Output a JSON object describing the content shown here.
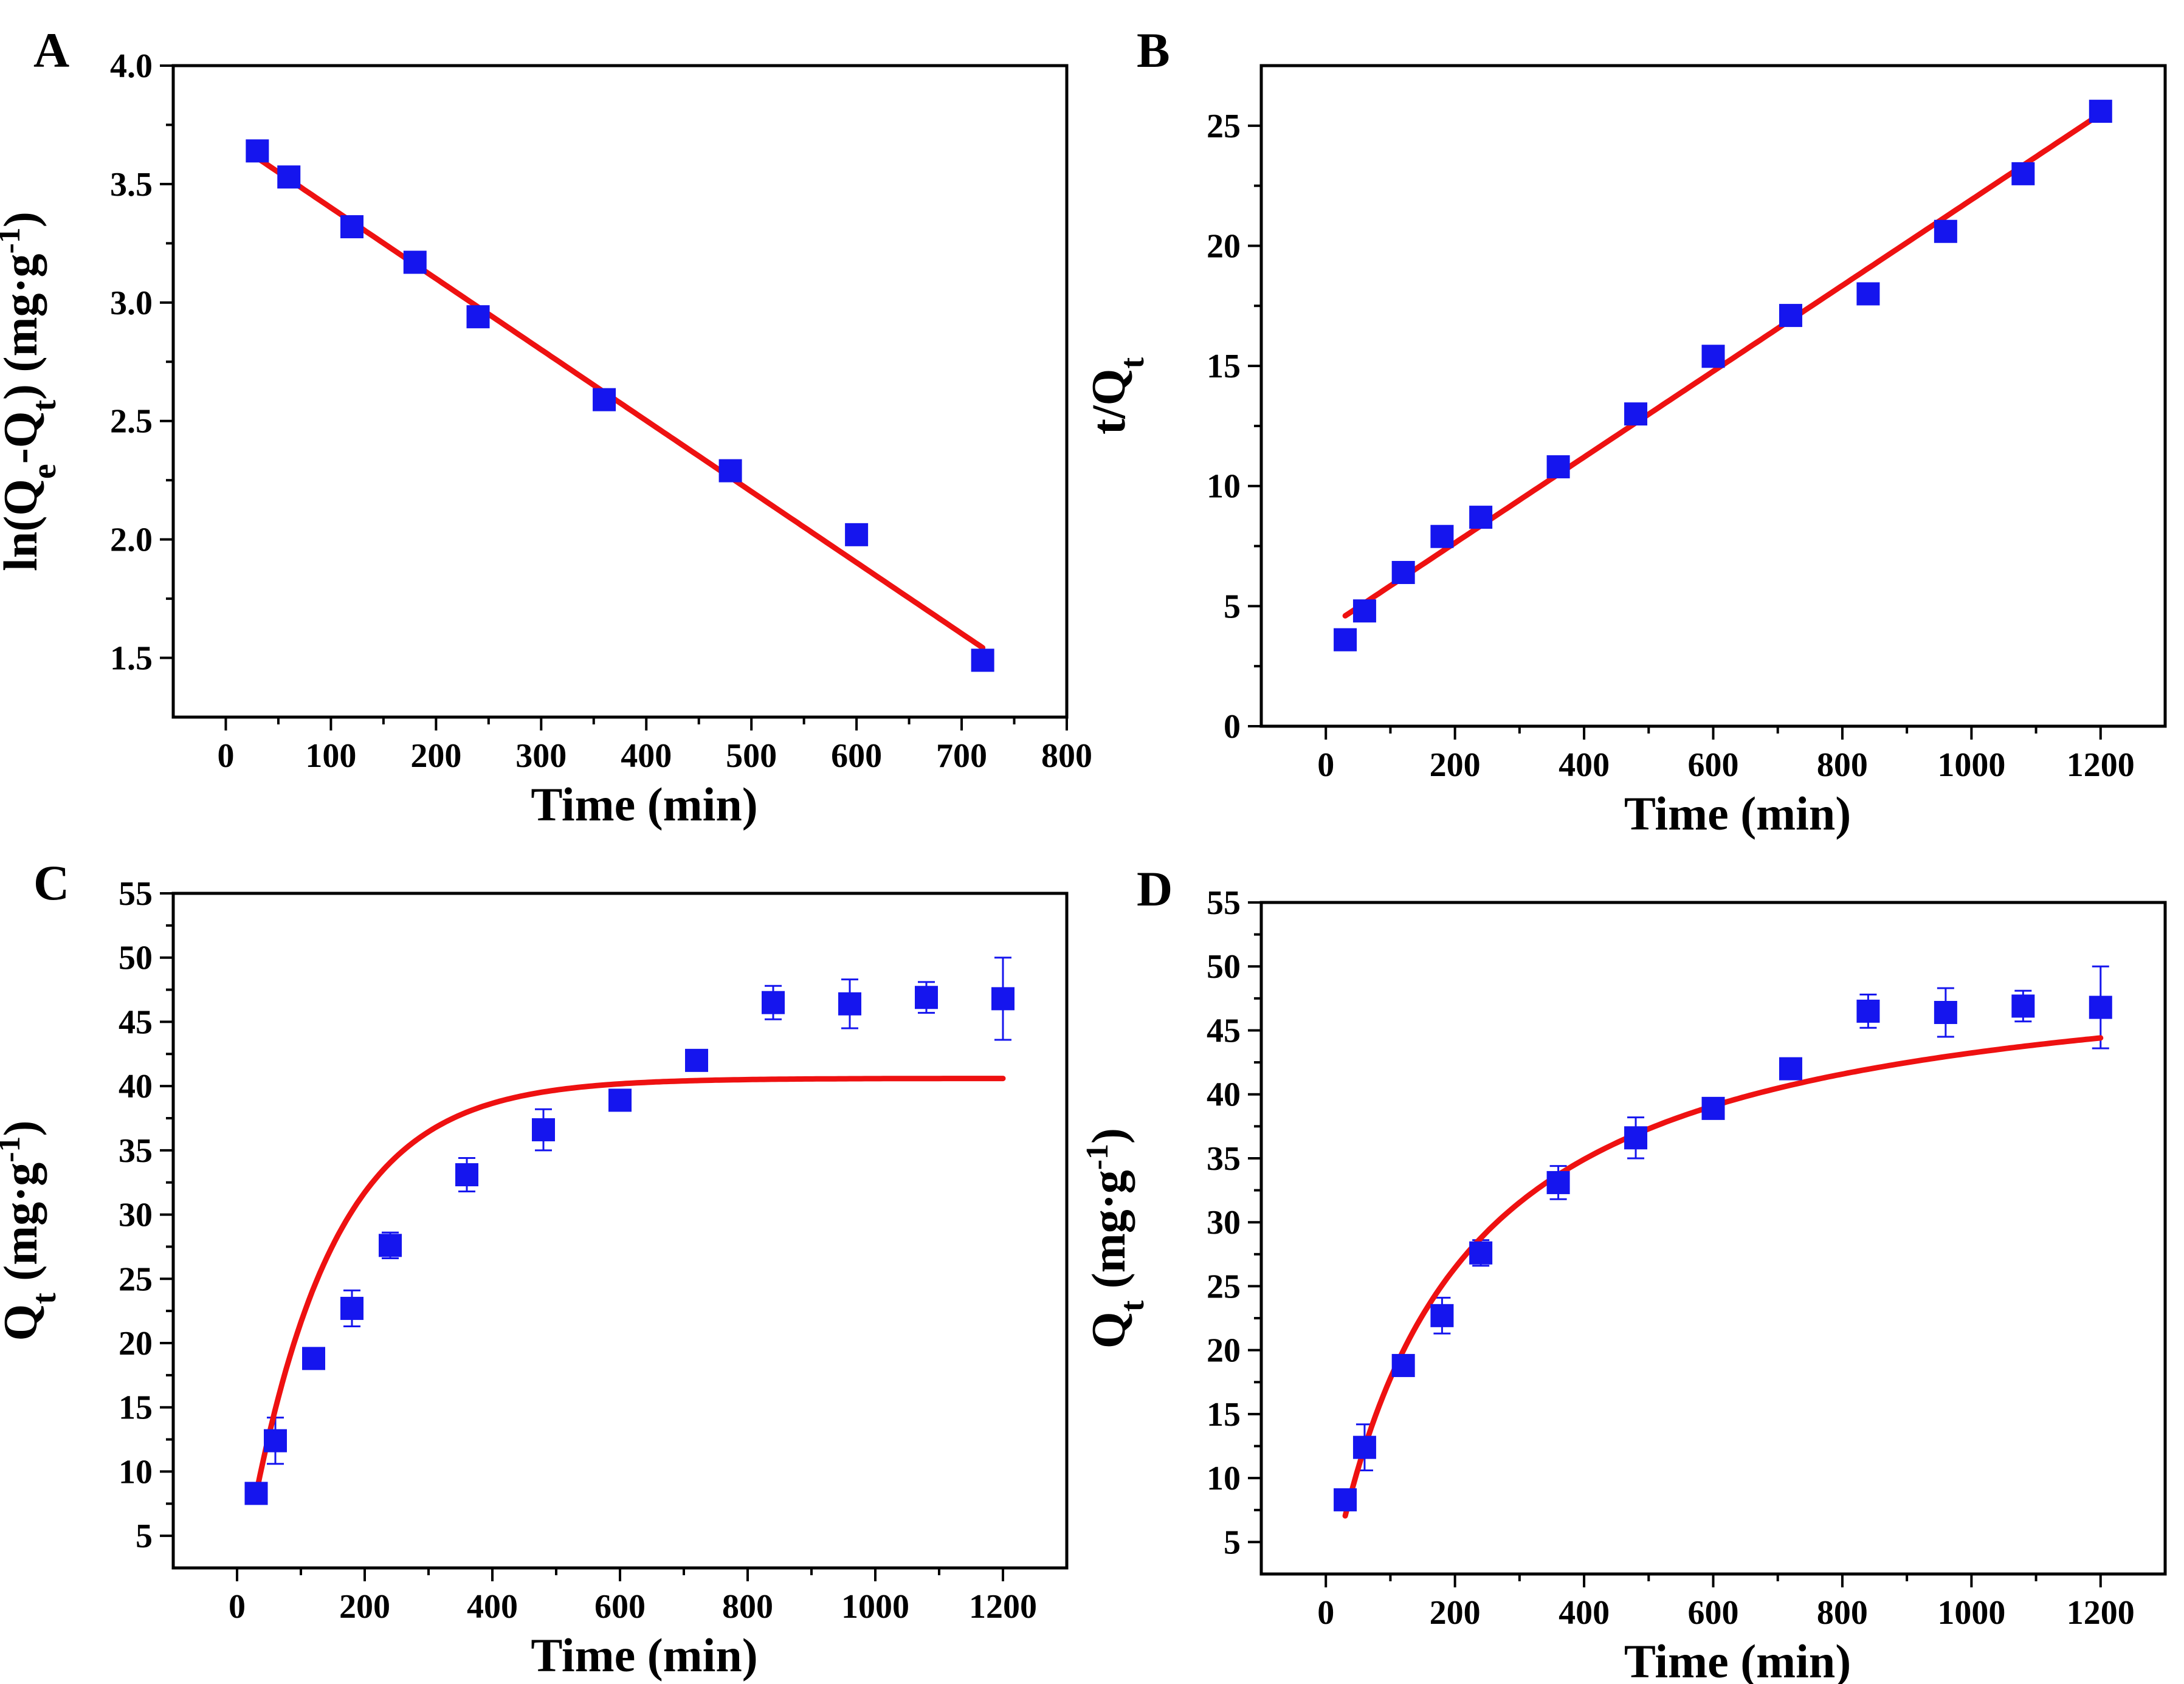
{
  "figure": {
    "colors": {
      "marker": "#1515ee",
      "fit": "#ee1111",
      "axis": "#000000"
    },
    "marker_shape": "square"
  },
  "chart_data": [
    {
      "panel": "A",
      "type": "scatter",
      "x_title": "Time (min)",
      "y_title": {
        "pre": "ln(Q",
        "sub1": "e",
        "mid": "-Q",
        "sub2": "t",
        "post": ") (mg·g",
        "sup": "-1",
        "end": ")"
      },
      "xlim": [
        -50,
        800
      ],
      "ylim": [
        1.25,
        4.0
      ],
      "xticks": [
        0,
        100,
        200,
        300,
        400,
        500,
        600,
        700,
        800
      ],
      "yticks": [
        1.5,
        2.0,
        2.5,
        3.0,
        3.5,
        4.0
      ],
      "ytick_decimals": 1,
      "points": [
        {
          "x": 30,
          "y": 3.64
        },
        {
          "x": 60,
          "y": 3.53
        },
        {
          "x": 120,
          "y": 3.32
        },
        {
          "x": 180,
          "y": 3.17
        },
        {
          "x": 240,
          "y": 2.94
        },
        {
          "x": 360,
          "y": 2.59
        },
        {
          "x": 480,
          "y": 2.29
        },
        {
          "x": 600,
          "y": 2.02
        },
        {
          "x": 720,
          "y": 1.49
        }
      ],
      "fit": {
        "model": "linear",
        "x_range": [
          30,
          720
        ],
        "slope": -0.002996,
        "intercept": 3.7
      }
    },
    {
      "panel": "B",
      "type": "scatter",
      "x_title": "Time (min)",
      "y_title": {
        "pre": "t/Q",
        "sub1": "t"
      },
      "xlim": [
        -100,
        1300
      ],
      "ylim": [
        0,
        27.5
      ],
      "xticks": [
        0,
        200,
        400,
        600,
        800,
        1000,
        1200
      ],
      "yticks": [
        0,
        5,
        10,
        15,
        20,
        25
      ],
      "ytick_decimals": 0,
      "points": [
        {
          "x": 30,
          "y": 3.6
        },
        {
          "x": 60,
          "y": 4.8
        },
        {
          "x": 120,
          "y": 6.4
        },
        {
          "x": 180,
          "y": 7.9
        },
        {
          "x": 240,
          "y": 8.7
        },
        {
          "x": 360,
          "y": 10.8
        },
        {
          "x": 480,
          "y": 13.0
        },
        {
          "x": 600,
          "y": 15.4
        },
        {
          "x": 720,
          "y": 17.1
        },
        {
          "x": 840,
          "y": 18.0
        },
        {
          "x": 960,
          "y": 20.6
        },
        {
          "x": 1080,
          "y": 23.0
        },
        {
          "x": 1200,
          "y": 25.6
        }
      ],
      "fit": {
        "model": "linear",
        "x_range": [
          30,
          1200
        ],
        "slope": 0.01786,
        "intercept": 4.06
      }
    },
    {
      "panel": "C",
      "type": "scatter",
      "x_title": "Time (min)",
      "y_title": {
        "pre": "Q",
        "sub1": "t",
        "post": " (mg·g",
        "sup": "-1",
        "end": ")"
      },
      "xlim": [
        -100,
        1300
      ],
      "ylim": [
        2.5,
        55
      ],
      "xticks": [
        0,
        200,
        400,
        600,
        800,
        1000,
        1200
      ],
      "yticks": [
        5,
        10,
        15,
        20,
        25,
        30,
        35,
        40,
        45,
        50,
        55
      ],
      "ytick_decimals": 0,
      "points": [
        {
          "x": 30,
          "y": 8.3,
          "err": 0.3
        },
        {
          "x": 60,
          "y": 12.4,
          "err": 1.8
        },
        {
          "x": 120,
          "y": 18.8,
          "err": 0.4
        },
        {
          "x": 180,
          "y": 22.7,
          "err": 1.4
        },
        {
          "x": 240,
          "y": 27.6,
          "err": 1.0
        },
        {
          "x": 360,
          "y": 33.1,
          "err": 1.3
        },
        {
          "x": 480,
          "y": 36.6,
          "err": 1.6
        },
        {
          "x": 600,
          "y": 38.9,
          "err": 0.5
        },
        {
          "x": 720,
          "y": 42.0,
          "err": 0.5
        },
        {
          "x": 840,
          "y": 46.5,
          "err": 1.3
        },
        {
          "x": 960,
          "y": 46.4,
          "err": 1.9
        },
        {
          "x": 1080,
          "y": 46.9,
          "err": 1.2
        },
        {
          "x": 1200,
          "y": 46.8,
          "err": 3.2
        }
      ],
      "fit": {
        "model": "pseudo-first-order",
        "x_range": [
          30,
          1200
        ],
        "qe": 40.6,
        "k": 0.0076
      }
    },
    {
      "panel": "D",
      "type": "scatter",
      "x_title": "Time (min)",
      "y_title": {
        "pre": "Q",
        "sub1": "t",
        "post": " (mg·g",
        "sup": "-1",
        "end": ")"
      },
      "xlim": [
        -100,
        1300
      ],
      "ylim": [
        2.5,
        55
      ],
      "xticks": [
        0,
        200,
        400,
        600,
        800,
        1000,
        1200
      ],
      "yticks": [
        5,
        10,
        15,
        20,
        25,
        30,
        35,
        40,
        45,
        50,
        55
      ],
      "ytick_decimals": 0,
      "points": [
        {
          "x": 30,
          "y": 8.3,
          "err": 0.3
        },
        {
          "x": 60,
          "y": 12.4,
          "err": 1.8
        },
        {
          "x": 120,
          "y": 18.8,
          "err": 0.4
        },
        {
          "x": 180,
          "y": 22.7,
          "err": 1.4
        },
        {
          "x": 240,
          "y": 27.6,
          "err": 1.0
        },
        {
          "x": 360,
          "y": 33.1,
          "err": 1.3
        },
        {
          "x": 480,
          "y": 36.6,
          "err": 1.6
        },
        {
          "x": 600,
          "y": 38.9,
          "err": 0.5
        },
        {
          "x": 720,
          "y": 42.0,
          "err": 0.5
        },
        {
          "x": 840,
          "y": 46.5,
          "err": 1.3
        },
        {
          "x": 960,
          "y": 46.4,
          "err": 1.9
        },
        {
          "x": 1080,
          "y": 46.9,
          "err": 1.2
        },
        {
          "x": 1200,
          "y": 46.8,
          "err": 3.2
        }
      ],
      "fit": {
        "model": "pseudo-second-order",
        "x_range": [
          30,
          1200
        ],
        "qe": 51.4,
        "k": 0.000103
      }
    }
  ]
}
